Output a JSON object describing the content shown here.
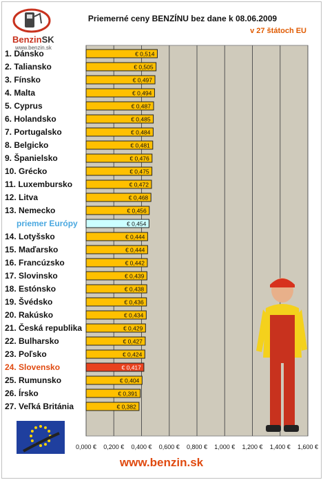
{
  "header": {
    "title": "Priemerné ceny BENZÍNU bez dane k 08.06.2009",
    "subtitle": "v 27 štátoch EU"
  },
  "logo": {
    "brand_left": "Benzin",
    "brand_right": "SK",
    "url": "www.benzin.sk"
  },
  "footer": {
    "site": "www.benzin.sk"
  },
  "colors": {
    "bar": "#ffc000",
    "highlight": "#e8421e",
    "average": "#ccffff",
    "plot_bg": "#cfcabb",
    "highlight_text": "#e04a10",
    "average_text": "#4aa8e0"
  },
  "chart_data": {
    "type": "bar",
    "orientation": "horizontal",
    "categories": [
      "1. Dánsko",
      "2. Taliansko",
      "3. Fínsko",
      "4. Malta",
      "5. Cyprus",
      "6. Holandsko",
      "7. Portugalsko",
      "8. Belgicko",
      "9. Španielsko",
      "10. Grécko",
      "11. Luxembursko",
      "12. Litva",
      "13. Nemecko",
      "priemer Európy",
      "14. Lotyšsko",
      "15. Maďarsko",
      "16. Francúzsko",
      "17. Slovinsko",
      "18. Estónsko",
      "19. Švédsko",
      "20. Rakúsko",
      "21. Česká republika",
      "22. Bulharsko",
      "23. Poľsko",
      "24. Slovensko",
      "25. Rumunsko",
      "26. Írsko",
      "27. Veľká Británia"
    ],
    "values": [
      0.514,
      0.505,
      0.497,
      0.494,
      0.487,
      0.485,
      0.484,
      0.481,
      0.476,
      0.475,
      0.472,
      0.468,
      0.456,
      0.454,
      0.444,
      0.444,
      0.442,
      0.439,
      0.438,
      0.436,
      0.434,
      0.429,
      0.427,
      0.424,
      0.417,
      0.404,
      0.391,
      0.382
    ],
    "value_labels": [
      "€ 0,514",
      "€ 0,505",
      "€ 0,497",
      "€ 0,494",
      "€ 0,487",
      "€ 0,485",
      "€ 0,484",
      "€ 0,481",
      "€ 0,476",
      "€ 0,475",
      "€ 0,472",
      "€ 0,468",
      "€ 0,456",
      "€ 0,454",
      "€ 0,444",
      "€ 0,444",
      "€ 0,442",
      "€ 0,439",
      "€ 0,438",
      "€ 0,436",
      "€ 0,434",
      "€ 0,429",
      "€ 0,427",
      "€ 0,424",
      "€ 0,417",
      "€ 0,404",
      "€ 0,391",
      "€ 0,382"
    ],
    "highlight": "24. Slovensko",
    "average_category": "priemer Európy",
    "xlim": [
      0,
      1.6
    ],
    "x_ticks": [
      "0,000 €",
      "0,200 €",
      "0,400 €",
      "0,600 €",
      "0,800 €",
      "1,000 €",
      "1,200 €",
      "1,400 €",
      "1,600 €"
    ],
    "grid": true,
    "title": "Priemerné ceny BENZÍNU bez dane k 08.06.2009",
    "subtitle": "v 27 štátoch EU"
  }
}
